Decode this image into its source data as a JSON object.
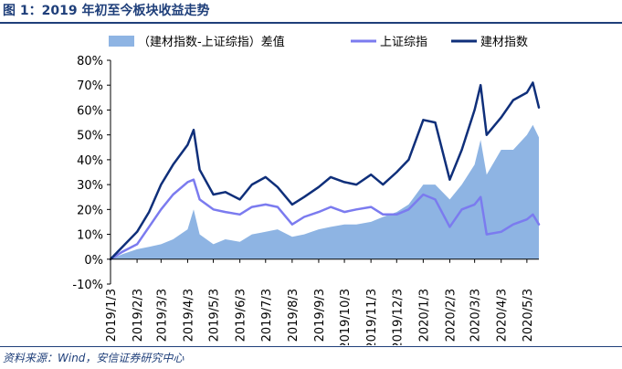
{
  "title": "图 1：2019 年初至今板块收益走势",
  "source": "资料来源：Wind，安信证券研究中心",
  "chart_data": {
    "type": "line",
    "ylim": [
      -10,
      80
    ],
    "y_ticks": [
      -10,
      0,
      10,
      20,
      30,
      40,
      50,
      60,
      70,
      80
    ],
    "y_tick_labels": [
      "-10%",
      "0%",
      "10%",
      "20%",
      "30%",
      "40%",
      "50%",
      "60%",
      "70%",
      "80%"
    ],
    "x_tick_labels": [
      "2019/1/3",
      "2019/2/3",
      "2019/3/3",
      "2019/4/3",
      "2019/5/3",
      "2019/6/3",
      "2019/7/3",
      "2019/8/3",
      "2019/9/3",
      "2019/10/3",
      "2019/11/3",
      "2019/12/3",
      "2020/1/3",
      "2020/2/3",
      "2020/3/3",
      "2020/4/3",
      "2020/5/3"
    ],
    "grid": false,
    "legend_position": "top",
    "x": [
      "2019/1/3",
      "2019/1/17",
      "2019/2/3",
      "2019/2/17",
      "2019/3/3",
      "2019/3/17",
      "2019/4/3",
      "2019/4/10",
      "2019/4/17",
      "2019/5/3",
      "2019/5/17",
      "2019/6/3",
      "2019/6/17",
      "2019/7/3",
      "2019/7/17",
      "2019/8/3",
      "2019/8/17",
      "2019/9/3",
      "2019/9/17",
      "2019/10/3",
      "2019/10/17",
      "2019/11/3",
      "2019/11/17",
      "2019/12/3",
      "2019/12/17",
      "2020/1/3",
      "2020/1/17",
      "2020/2/3",
      "2020/2/17",
      "2020/3/3",
      "2020/3/10",
      "2020/3/17",
      "2020/4/3",
      "2020/4/17",
      "2020/5/3",
      "2020/5/10",
      "2020/5/17"
    ],
    "series": [
      {
        "name": "（建材指数-上证综指）差值",
        "kind": "area",
        "color": "#8eb4e3",
        "values": [
          0,
          2,
          4,
          5,
          6,
          8,
          12,
          20,
          10,
          6,
          8,
          7,
          10,
          11,
          12,
          9,
          10,
          12,
          13,
          14,
          14,
          15,
          17,
          19,
          22,
          30,
          30,
          24,
          30,
          38,
          48,
          34,
          44,
          44,
          50,
          54,
          49
        ]
      },
      {
        "name": "上证综指",
        "kind": "line",
        "color": "#7b7bef",
        "values": [
          0,
          3,
          6,
          13,
          20,
          26,
          31,
          32,
          24,
          20,
          19,
          18,
          21,
          22,
          21,
          14,
          17,
          19,
          21,
          19,
          20,
          21,
          18,
          18,
          20,
          26,
          24,
          13,
          20,
          22,
          25,
          10,
          11,
          14,
          16,
          18,
          14
        ]
      },
      {
        "name": "建材指数",
        "kind": "line",
        "color": "#0f2f7a",
        "values": [
          0,
          5,
          11,
          19,
          30,
          38,
          46,
          52,
          36,
          26,
          27,
          24,
          30,
          33,
          29,
          22,
          25,
          29,
          33,
          31,
          30,
          34,
          30,
          35,
          40,
          56,
          55,
          32,
          44,
          60,
          70,
          50,
          57,
          64,
          67,
          71,
          61
        ]
      }
    ]
  }
}
